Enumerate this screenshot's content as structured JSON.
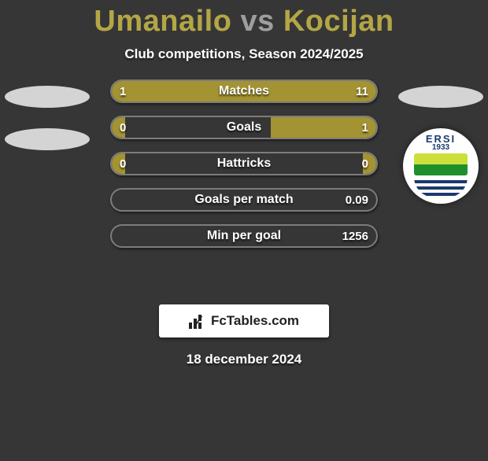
{
  "background_color": "#363636",
  "title": {
    "player1": "Umanailo",
    "vs": "vs",
    "player2": "Kocijan",
    "player_color": "#b4a646",
    "vs_color": "#9e9e9e",
    "fontsize": 38
  },
  "subtitle": "Club competitions, Season 2024/2025",
  "bars": {
    "fill_color": "#a39332",
    "border_color": "rgba(255,255,255,0.35)",
    "text_color": "#ffffff",
    "height": 30,
    "gap": 16,
    "rows": [
      {
        "label": "Matches",
        "left": "1",
        "right": "11",
        "left_pct": 8,
        "right_pct": 92
      },
      {
        "label": "Goals",
        "left": "0",
        "right": "1",
        "left_pct": 5,
        "right_pct": 40
      },
      {
        "label": "Hattricks",
        "left": "0",
        "right": "0",
        "left_pct": 5,
        "right_pct": 5
      },
      {
        "label": "Goals per match",
        "left": "",
        "right": "0.09",
        "left_pct": 0,
        "right_pct": 0
      },
      {
        "label": "Min per goal",
        "left": "",
        "right": "1256",
        "left_pct": 0,
        "right_pct": 0
      }
    ]
  },
  "left_side": {
    "ellipse_count": 2,
    "ellipse_color": "#d4d4d4"
  },
  "right_side": {
    "ellipse_count": 1,
    "ellipse_color": "#d4d4d4",
    "badge": {
      "arc_text": "ERSI",
      "year": "1933",
      "top_colors": [
        "#cddf3a",
        "#1f8f2d"
      ],
      "wave_colors": [
        "#ffffff",
        "#1a3a6e"
      ]
    }
  },
  "brand": "FcTables.com",
  "date": "18 december 2024"
}
